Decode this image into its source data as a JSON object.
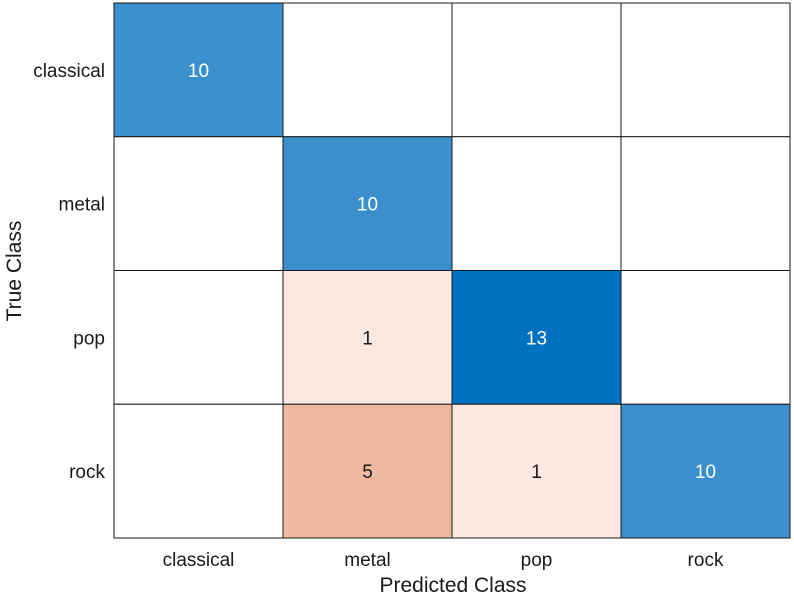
{
  "chart_data": {
    "type": "heatmap",
    "title": "",
    "xlabel": "Predicted Class",
    "ylabel": "True Class",
    "x_categories": [
      "classical",
      "metal",
      "pop",
      "rock"
    ],
    "y_categories": [
      "classical",
      "metal",
      "pop",
      "rock"
    ],
    "matrix": [
      [
        10,
        null,
        null,
        null
      ],
      [
        null,
        10,
        null,
        null
      ],
      [
        null,
        1,
        13,
        null
      ],
      [
        null,
        5,
        1,
        10
      ]
    ],
    "grid": true,
    "legend": "none",
    "colors": {
      "diagonal_light": "#3a8fcc",
      "diagonal_dark": "#0070c0",
      "offdiag_light": "#fae8e1",
      "offdiag_dark": "#efb8a0",
      "empty": "#ffffff",
      "border": "#1a1a1a",
      "text_dark": "#1a1a1a",
      "text_light": "#ffffff"
    }
  }
}
